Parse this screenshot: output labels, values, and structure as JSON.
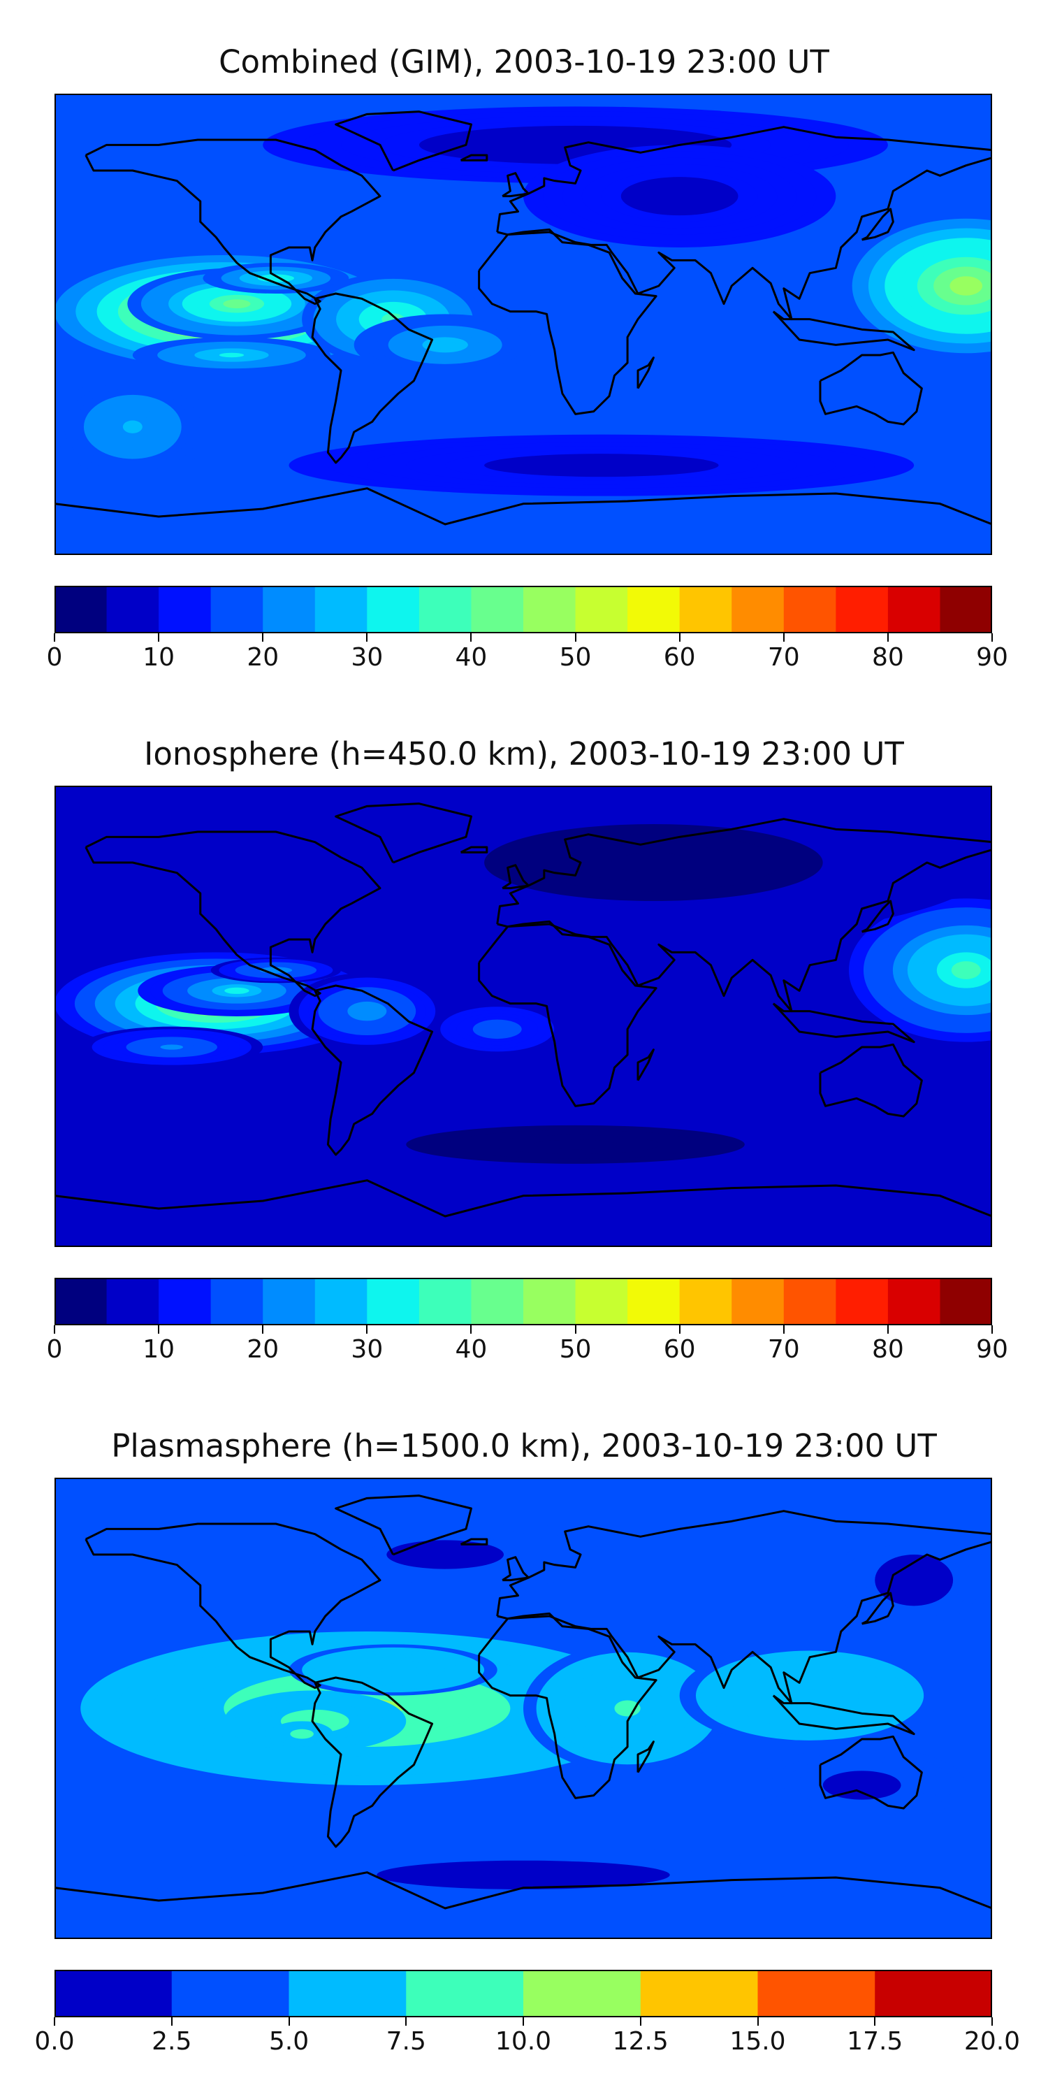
{
  "chart_data": [
    {
      "type": "heatmap",
      "title": "Combined (GIM), 2003-10-19 23:00 UT",
      "subtitle": "",
      "xlabel": "",
      "ylabel": "",
      "levels": [
        0,
        5,
        10,
        15,
        20,
        25,
        30,
        35,
        40,
        45,
        50,
        55,
        60,
        65,
        70,
        75,
        80,
        85,
        90
      ],
      "colorbar_ticks": [
        "0",
        "10",
        "20",
        "30",
        "40",
        "50",
        "60",
        "70",
        "80",
        "90"
      ],
      "colorbar_tick_values": [
        0,
        10,
        20,
        30,
        40,
        50,
        60,
        70,
        80,
        90
      ],
      "colors": [
        "#00007f",
        "#0000c8",
        "#0011ff",
        "#0050ff",
        "#008cff",
        "#00bbff",
        "#0ef5ee",
        "#3dffba",
        "#68ff8e",
        "#98ff60",
        "#c7ff30",
        "#f2fa06",
        "#ffc500",
        "#ff8c00",
        "#ff5400",
        "#ff1e00",
        "#d90000",
        "#8f0000"
      ],
      "lon_range": [
        -180,
        180
      ],
      "lat_range": [
        -90,
        90
      ],
      "background_value": 15,
      "blobs": [
        {
          "lon": -115,
          "lat": 5,
          "rx": 65,
          "ry": 22,
          "value": 45
        },
        {
          "lon": -110,
          "lat": 8,
          "rx": 42,
          "ry": 14,
          "value": 25
        },
        {
          "lon": -95,
          "lat": 18,
          "rx": 28,
          "ry": 6,
          "value": 18
        },
        {
          "lon": -112,
          "lat": -12,
          "rx": 38,
          "ry": 7,
          "value": 15
        },
        {
          "lon": -50,
          "lat": 2,
          "rx": 35,
          "ry": 18,
          "value": 20
        },
        {
          "lon": -30,
          "lat": -8,
          "rx": 35,
          "ry": 12,
          "value": 12
        },
        {
          "lon": 170,
          "lat": 15,
          "rx": 50,
          "ry": 30,
          "value": 30
        },
        {
          "lon": 20,
          "lat": 70,
          "rx": 120,
          "ry": 15,
          "value": -10
        },
        {
          "lon": 60,
          "lat": 50,
          "rx": 60,
          "ry": 20,
          "value": -8
        },
        {
          "lon": 30,
          "lat": -55,
          "rx": 120,
          "ry": 12,
          "value": -8
        },
        {
          "lon": -150,
          "lat": -40,
          "rx": 30,
          "ry": 20,
          "value": 10
        }
      ]
    },
    {
      "type": "heatmap",
      "title": "Ionosphere  (h=450.0 km), 2003-10-19 23:00 UT",
      "subtitle": "",
      "xlabel": "",
      "ylabel": "",
      "levels": [
        0,
        5,
        10,
        15,
        20,
        25,
        30,
        35,
        40,
        45,
        50,
        55,
        60,
        65,
        70,
        75,
        80,
        85,
        90
      ],
      "colorbar_ticks": [
        "0",
        "10",
        "20",
        "30",
        "40",
        "50",
        "60",
        "70",
        "80",
        "90"
      ],
      "colorbar_tick_values": [
        0,
        10,
        20,
        30,
        40,
        50,
        60,
        70,
        80,
        90
      ],
      "colors": [
        "#00007f",
        "#0000c8",
        "#0011ff",
        "#0050ff",
        "#008cff",
        "#00bbff",
        "#0ef5ee",
        "#3dffba",
        "#68ff8e",
        "#98ff60",
        "#c7ff30",
        "#f2fa06",
        "#ffc500",
        "#ff8c00",
        "#ff5400",
        "#ff1e00",
        "#d90000",
        "#8f0000"
      ],
      "lon_range": [
        -180,
        180
      ],
      "lat_range": [
        -90,
        90
      ],
      "background_value": 8,
      "blobs": [
        {
          "lon": -118,
          "lat": 5,
          "rx": 62,
          "ry": 20,
          "value": 42
        },
        {
          "lon": -110,
          "lat": 10,
          "rx": 38,
          "ry": 10,
          "value": 22
        },
        {
          "lon": -95,
          "lat": 18,
          "rx": 25,
          "ry": 5,
          "value": 15
        },
        {
          "lon": -135,
          "lat": -12,
          "rx": 35,
          "ry": 8,
          "value": 12
        },
        {
          "lon": -60,
          "lat": 2,
          "rx": 30,
          "ry": 15,
          "value": 15
        },
        {
          "lon": -10,
          "lat": -5,
          "rx": 25,
          "ry": 10,
          "value": 10
        },
        {
          "lon": 170,
          "lat": 18,
          "rx": 45,
          "ry": 28,
          "value": 28
        },
        {
          "lon": 50,
          "lat": 60,
          "rx": 130,
          "ry": 30,
          "value": -6
        },
        {
          "lon": 20,
          "lat": -50,
          "rx": 130,
          "ry": 15,
          "value": -5
        }
      ]
    },
    {
      "type": "heatmap",
      "title": "Plasmasphere (h=1500.0 km), 2003-10-19 23:00 UT",
      "subtitle": "",
      "xlabel": "",
      "ylabel": "",
      "levels": [
        0,
        2.5,
        5,
        7.5,
        10,
        12.5,
        15,
        17.5,
        20
      ],
      "colorbar_ticks": [
        "0.0",
        "2.5",
        "5.0",
        "7.5",
        "10.0",
        "12.5",
        "15.0",
        "17.5",
        "20.0"
      ],
      "colorbar_tick_values": [
        0,
        2.5,
        5,
        7.5,
        10,
        12.5,
        15,
        17.5,
        20
      ],
      "colors": [
        "#0000c8",
        "#0050ff",
        "#00bbff",
        "#3dffba",
        "#98ff60",
        "#ffc500",
        "#ff5400",
        "#c80000"
      ],
      "lon_range": [
        -180,
        180
      ],
      "lat_range": [
        -90,
        90
      ],
      "background_value": 4.5,
      "blobs": [
        {
          "lon": -60,
          "lat": 0,
          "rx": 110,
          "ry": 30,
          "value": 5.5
        },
        {
          "lon": -80,
          "lat": -5,
          "rx": 35,
          "ry": 12,
          "value": 4
        },
        {
          "lon": -85,
          "lat": -10,
          "rx": 12,
          "ry": 5,
          "value": 4
        },
        {
          "lon": -50,
          "lat": 15,
          "rx": 40,
          "ry": 10,
          "value": 2
        },
        {
          "lon": 40,
          "lat": 0,
          "rx": 40,
          "ry": 25,
          "value": 3
        },
        {
          "lon": 110,
          "lat": 5,
          "rx": 50,
          "ry": 20,
          "value": 2
        },
        {
          "lon": 130,
          "lat": -30,
          "rx": 40,
          "ry": 15,
          "value": -3
        },
        {
          "lon": -30,
          "lat": 60,
          "rx": 60,
          "ry": 15,
          "value": -3
        },
        {
          "lon": 150,
          "lat": 50,
          "rx": 30,
          "ry": 20,
          "value": -4
        },
        {
          "lon": 0,
          "lat": -65,
          "rx": 150,
          "ry": 15,
          "value": -3
        }
      ]
    }
  ]
}
